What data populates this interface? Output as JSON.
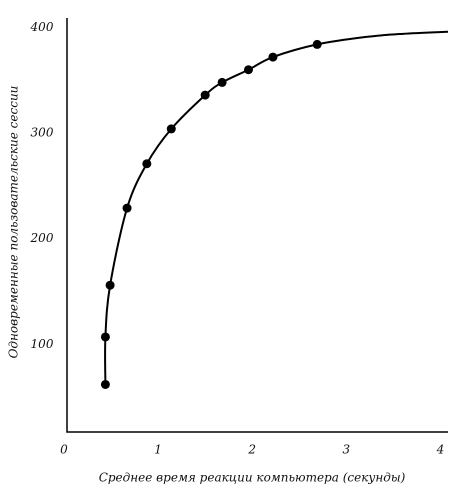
{
  "chart_data": {
    "type": "scatter",
    "x_label": "Среднее время реакции компьютера (секунды)",
    "y_label": "Одновременные пользовательские сессии",
    "xlim": [
      0,
      4.08
    ],
    "ylim": [
      17,
      409
    ],
    "xticks": [
      0,
      1,
      2,
      3,
      4
    ],
    "yticks": [
      100,
      200,
      300,
      400
    ],
    "color": "#000000",
    "series": [
      {
        "x": [
          0.44,
          0.44,
          0.49,
          0.67,
          0.88,
          1.14,
          1.5,
          1.68,
          1.96,
          2.22,
          2.69
        ],
        "values": [
          62,
          107,
          156,
          229,
          271,
          304,
          336,
          348,
          360,
          372,
          384
        ]
      },
      {
        "x": [
          0.44,
          0.44,
          0.49,
          0.67,
          0.88,
          1.14,
          1.5,
          1.68,
          1.96,
          2.22,
          2.69,
          3.2,
          3.6,
          4.08
        ],
        "values": [
          62,
          107,
          156,
          229,
          271,
          304,
          336,
          348,
          360,
          372,
          384,
          391,
          394,
          396
        ]
      }
    ]
  }
}
